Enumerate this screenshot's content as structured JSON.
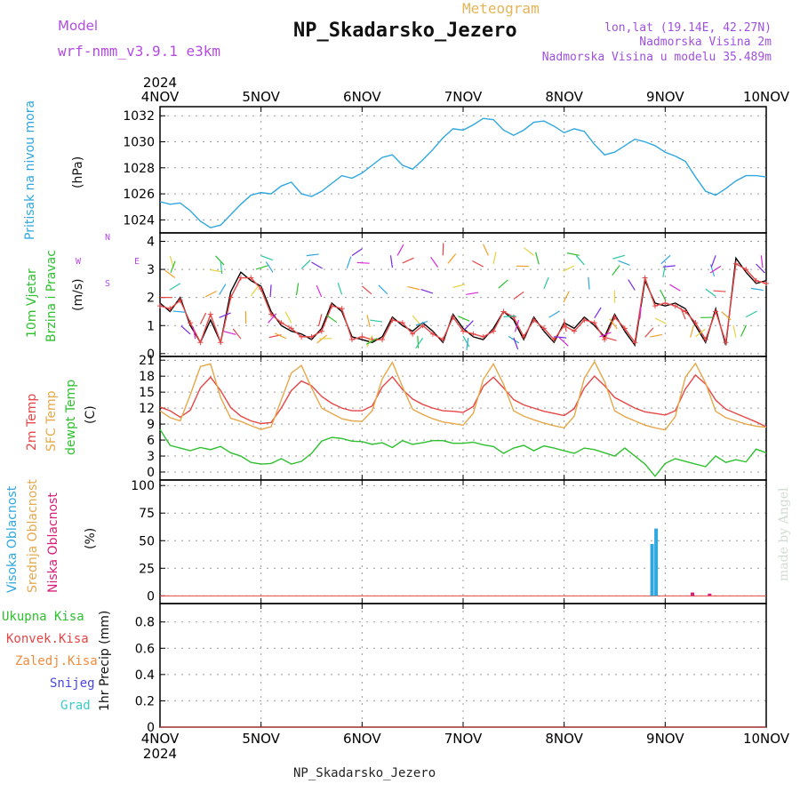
{
  "header": {
    "model_label": "Model",
    "model_name": "wrf-nmm_v3.9.1 e3km",
    "meteogram_label": "Meteogram",
    "station": "NP_Skadarsko_Jezero",
    "lonlat": "lon,lat (19.14E, 42.27N)",
    "elevation": "Nadmorska Visina 2m",
    "model_elevation": "Nadmorska Visina u modelu 35.489m",
    "footer_station": "NP_Skadarsko_Jezero",
    "watermark": "made by Angel"
  },
  "time_axis": {
    "year": "2024",
    "ticks": [
      "4NOV",
      "5NOV",
      "6NOV",
      "7NOV",
      "8NOV",
      "9NOV",
      "10NOV"
    ]
  },
  "panels": {
    "pressure": {
      "label": "Pritisak na nivou mora",
      "unit": "(hPa)",
      "color": "#2fa7e0"
    },
    "wind": {
      "label1": "10m Vjetar",
      "label2": "Brzina i Pravac",
      "unit": "(m/s)",
      "compass_n": "N",
      "compass_w": "W",
      "compass_e": "E",
      "compass_s": "S"
    },
    "temp": {
      "label_2m": "2m Temp",
      "label_sfc": "SFC Temp",
      "label_dew": "dewpt Temp",
      "unit": "(C)"
    },
    "cloud": {
      "label_high": "Visoka Oblacnost",
      "label_mid": "Srednja Oblacnost",
      "label_low": "Niska Oblacnost",
      "unit": "(%)"
    },
    "precip": {
      "label": "1hr Precip (mm)",
      "legend": [
        "Ukupna Kisa",
        "Konvek.Kisa",
        "Zaledj.Kisa",
        "Snijeg",
        "Grad"
      ],
      "legend_colors": [
        "#2ec02e",
        "#e64646",
        "#f08c3c",
        "#4646e6",
        "#3cc8c8"
      ]
    }
  },
  "chart_data": [
    {
      "type": "line",
      "title": "",
      "ylabel": "(hPa)",
      "ylim": [
        1023,
        1032.7
      ],
      "yticks": [
        1024,
        1026,
        1028,
        1030,
        1032
      ],
      "x_days": [
        0,
        0.1,
        0.2,
        0.3,
        0.4,
        0.5,
        0.6,
        0.7,
        0.8,
        0.9,
        1.0,
        1.1,
        1.2,
        1.3,
        1.4,
        1.5,
        1.6,
        1.7,
        1.8,
        1.9,
        2.0,
        2.1,
        2.2,
        2.3,
        2.4,
        2.5,
        2.6,
        2.7,
        2.8,
        2.9,
        3.0,
        3.1,
        3.2,
        3.3,
        3.4,
        3.5,
        3.6,
        3.7,
        3.8,
        3.9,
        4.0,
        4.1,
        4.2,
        4.3,
        4.4,
        4.5,
        4.6,
        4.7,
        4.8,
        4.9,
        5.0,
        5.1,
        5.2,
        5.3,
        5.4,
        5.5,
        5.6,
        5.7,
        5.8,
        5.9,
        6.0
      ],
      "series": [
        {
          "values": [
            1025.4,
            1025.2,
            1025.3,
            1024.7,
            1023.9,
            1023.4,
            1023.6,
            1024.4,
            1025.2,
            1025.9,
            1026.1,
            1026.0,
            1026.6,
            1026.9,
            1026.0,
            1025.8,
            1026.2,
            1026.8,
            1027.4,
            1027.2,
            1027.6,
            1028.2,
            1028.8,
            1029.0,
            1028.2,
            1027.9,
            1028.6,
            1029.4,
            1030.3,
            1031.0,
            1030.9,
            1031.3,
            1031.8,
            1031.7,
            1030.9,
            1030.5,
            1030.9,
            1031.5,
            1031.6,
            1031.2,
            1030.7,
            1031.0,
            1030.8,
            1029.8,
            1029.0,
            1029.2,
            1029.7,
            1030.2,
            1030.0,
            1029.7,
            1029.2,
            1028.9,
            1028.5,
            1027.3,
            1026.2,
            1025.9,
            1026.4,
            1027.0,
            1027.4,
            1027.4,
            1027.3
          ]
        }
      ]
    },
    {
      "type": "line",
      "title": "",
      "ylabel": "(m/s)",
      "ylim": [
        -0.1,
        4.3
      ],
      "yticks": [
        0,
        1,
        2,
        3,
        4
      ],
      "x_days": [
        0,
        0.1,
        0.2,
        0.3,
        0.4,
        0.5,
        0.6,
        0.7,
        0.8,
        0.9,
        1.0,
        1.1,
        1.2,
        1.3,
        1.4,
        1.5,
        1.6,
        1.7,
        1.8,
        1.9,
        2.0,
        2.1,
        2.2,
        2.3,
        2.4,
        2.5,
        2.6,
        2.7,
        2.8,
        2.9,
        3.0,
        3.1,
        3.2,
        3.3,
        3.4,
        3.5,
        3.6,
        3.7,
        3.8,
        3.9,
        4.0,
        4.1,
        4.2,
        4.3,
        4.4,
        4.5,
        4.6,
        4.7,
        4.8,
        4.9,
        5.0,
        5.1,
        5.2,
        5.3,
        5.4,
        5.5,
        5.6,
        5.7,
        5.8,
        5.9,
        6.0
      ],
      "series": [
        {
          "color": "#000000",
          "values": [
            1.8,
            1.5,
            2.0,
            1.0,
            0.4,
            1.2,
            0.4,
            2.2,
            2.9,
            2.6,
            2.4,
            1.5,
            1.0,
            0.8,
            0.7,
            0.5,
            0.9,
            1.8,
            1.5,
            0.6,
            0.5,
            0.4,
            0.6,
            1.3,
            1.0,
            0.8,
            1.1,
            0.8,
            0.4,
            1.4,
            0.9,
            0.6,
            0.5,
            0.9,
            1.5,
            1.2,
            0.5,
            1.3,
            0.8,
            0.4,
            1.1,
            0.9,
            1.3,
            1.0,
            0.6,
            1.4,
            0.8,
            0.3,
            2.6,
            1.8,
            1.7,
            1.8,
            1.6,
            1.0,
            0.4,
            1.6,
            0.3,
            3.4,
            2.9,
            2.5,
            2.6
          ]
        },
        {
          "color": "#e64646",
          "values": [
            1.7,
            1.6,
            1.9,
            1.1,
            0.4,
            1.4,
            0.4,
            2.0,
            2.7,
            2.7,
            2.3,
            1.4,
            1.1,
            0.9,
            0.6,
            0.6,
            0.8,
            1.7,
            1.6,
            0.5,
            0.6,
            0.5,
            0.5,
            1.2,
            1.1,
            0.7,
            1.0,
            0.7,
            0.5,
            1.3,
            0.8,
            0.7,
            0.6,
            0.8,
            1.5,
            1.3,
            0.6,
            1.2,
            0.9,
            0.5,
            1.0,
            0.8,
            1.2,
            1.1,
            0.5,
            1.3,
            0.9,
            0.4,
            2.7,
            1.7,
            1.8,
            1.7,
            1.5,
            1.1,
            0.5,
            1.5,
            0.4,
            3.2,
            3.0,
            2.6,
            2.5
          ]
        }
      ]
    },
    {
      "type": "line",
      "title": "",
      "ylabel": "(C)",
      "ylim": [
        -1.5,
        21.7
      ],
      "yticks": [
        0,
        3,
        6,
        9,
        12,
        15,
        18,
        21
      ],
      "x_days": [
        0,
        0.1,
        0.2,
        0.3,
        0.4,
        0.5,
        0.6,
        0.7,
        0.8,
        0.9,
        1.0,
        1.1,
        1.2,
        1.3,
        1.4,
        1.5,
        1.6,
        1.7,
        1.8,
        1.9,
        2.0,
        2.1,
        2.2,
        2.3,
        2.4,
        2.5,
        2.6,
        2.7,
        2.8,
        2.9,
        3.0,
        3.1,
        3.2,
        3.3,
        3.4,
        3.5,
        3.6,
        3.7,
        3.8,
        3.9,
        4.0,
        4.1,
        4.2,
        4.3,
        4.4,
        4.5,
        4.6,
        4.7,
        4.8,
        4.9,
        5.0,
        5.1,
        5.2,
        5.3,
        5.4,
        5.5,
        5.6,
        5.7,
        5.8,
        5.9,
        6.0
      ],
      "series": [
        {
          "color": "#e64646",
          "values": [
            12.2,
            11.5,
            10.3,
            11.6,
            15.8,
            17.8,
            15.3,
            12.1,
            10.5,
            9.6,
            9.1,
            9.3,
            12.0,
            15.3,
            17.1,
            16.2,
            14.2,
            12.9,
            12.0,
            11.5,
            11.5,
            12.4,
            16.0,
            17.9,
            15.5,
            13.7,
            12.7,
            12.0,
            11.5,
            11.4,
            11.2,
            12.3,
            16.1,
            17.8,
            15.8,
            13.6,
            12.6,
            12.0,
            11.4,
            11.0,
            10.6,
            11.9,
            15.8,
            18.0,
            16.2,
            14.0,
            13.0,
            12.0,
            11.3,
            11.0,
            10.7,
            11.5,
            15.6,
            18.2,
            16.5,
            13.5,
            11.8,
            11.0,
            10.2,
            9.4,
            8.5
          ]
        },
        {
          "color": "#e6a84a",
          "values": [
            11.5,
            10.2,
            9.6,
            14.5,
            19.8,
            20.3,
            14.0,
            10.1,
            9.5,
            8.7,
            8.0,
            8.5,
            13.5,
            18.6,
            20.0,
            15.8,
            12.0,
            11.0,
            10.0,
            9.6,
            9.5,
            11.5,
            17.5,
            20.6,
            16.0,
            11.8,
            10.8,
            10.0,
            9.4,
            9.1,
            8.8,
            11.0,
            17.4,
            20.3,
            16.5,
            11.5,
            10.5,
            9.8,
            9.2,
            8.7,
            8.3,
            10.5,
            17.6,
            20.7,
            17.0,
            11.5,
            10.4,
            9.6,
            8.8,
            8.3,
            7.9,
            10.4,
            17.8,
            20.4,
            16.7,
            11.4,
            10.2,
            9.6,
            9.0,
            8.6,
            8.4
          ]
        },
        {
          "color": "#2ec02e",
          "values": [
            8.0,
            5.0,
            4.5,
            4.0,
            4.6,
            4.2,
            4.8,
            3.6,
            3.0,
            1.8,
            1.5,
            1.6,
            2.5,
            1.5,
            2.0,
            3.5,
            5.8,
            6.5,
            6.3,
            5.8,
            5.7,
            5.2,
            5.5,
            4.6,
            5.9,
            5.2,
            5.5,
            5.9,
            5.9,
            5.4,
            5.4,
            5.6,
            5.1,
            4.8,
            3.5,
            4.5,
            5.0,
            4.0,
            4.9,
            4.5,
            4.0,
            3.5,
            4.5,
            4.2,
            3.6,
            3.0,
            4.5,
            3.0,
            1.5,
            -0.8,
            1.6,
            2.5,
            2.0,
            1.5,
            1.0,
            3.0,
            1.8,
            2.3,
            1.9,
            4.3,
            3.6
          ]
        }
      ]
    },
    {
      "type": "bar",
      "title": "",
      "ylabel": "(%)",
      "ylim": [
        -7,
        105
      ],
      "yticks": [
        0,
        25,
        50,
        75,
        100
      ],
      "series": [
        {
          "color": "#2fa7e0",
          "bars": [
            {
              "day": 4.87,
              "value": 47
            },
            {
              "day": 4.91,
              "value": 61
            }
          ]
        },
        {
          "color": "#d81e78",
          "bars": [
            {
              "day": 5.27,
              "value": 3
            },
            {
              "day": 5.44,
              "value": 2
            }
          ]
        }
      ]
    },
    {
      "type": "bar",
      "title": "",
      "ylabel": "1hr Precip (mm)",
      "ylim": [
        0,
        0.94
      ],
      "yticks": [
        0,
        0.2,
        0.4,
        0.6,
        0.8
      ],
      "series": []
    }
  ]
}
